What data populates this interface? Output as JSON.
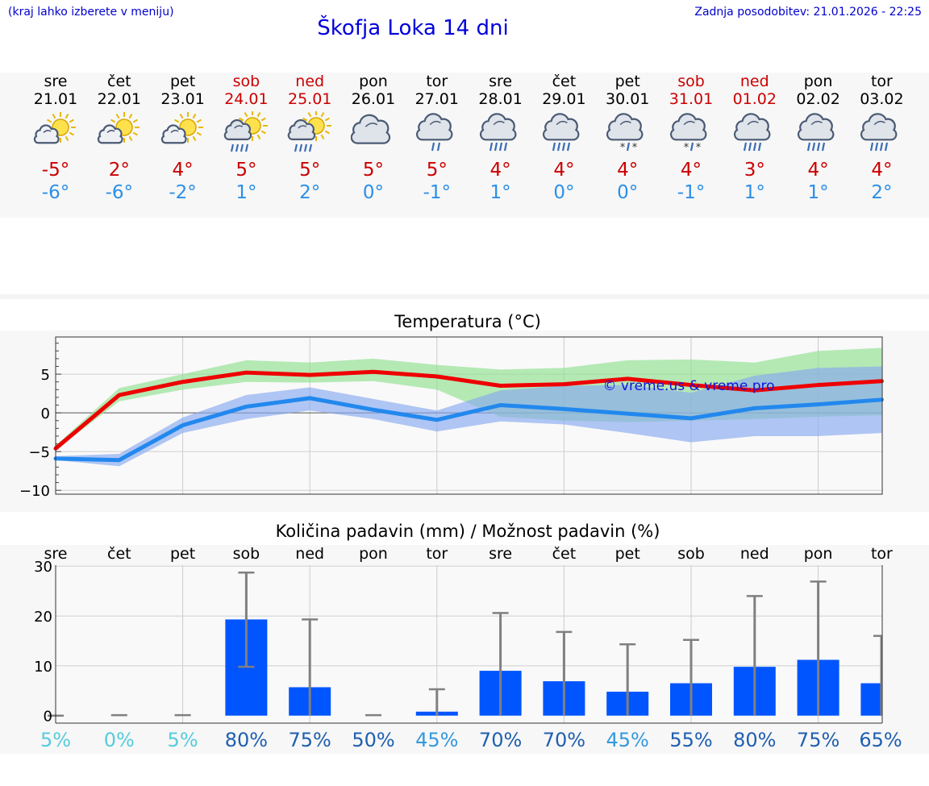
{
  "header": {
    "hint": "(kraj lahko izberete v meniju)",
    "title": "Škofja Loka 14 dni",
    "updated": "Zadnja posodobitev: 21.01.2026 - 22:25"
  },
  "colors": {
    "weekend": "#cc0000",
    "weekday": "#000000",
    "max": "#cc0000",
    "min": "#2b8fe8",
    "bar": "#0055ff",
    "err": "#808080"
  },
  "days": [
    {
      "dn": "sre",
      "dd": "21.01",
      "icon": "sun-partly-cloudy-icon",
      "tmax": "-5°",
      "tmin": "-6°",
      "weekend": false
    },
    {
      "dn": "čet",
      "dd": "22.01",
      "icon": "sun-partly-cloudy-icon",
      "tmax": "2°",
      "tmin": "-6°",
      "weekend": false
    },
    {
      "dn": "pet",
      "dd": "23.01",
      "icon": "sun-partly-cloudy-icon",
      "tmax": "4°",
      "tmin": "-2°",
      "weekend": false
    },
    {
      "dn": "sob",
      "dd": "24.01",
      "icon": "sun-cloud-rain-icon",
      "tmax": "5°",
      "tmin": "1°",
      "weekend": true
    },
    {
      "dn": "ned",
      "dd": "25.01",
      "icon": "sun-cloud-rain-icon",
      "tmax": "5°",
      "tmin": "2°",
      "weekend": true
    },
    {
      "dn": "pon",
      "dd": "26.01",
      "icon": "cloudy-icon",
      "tmax": "5°",
      "tmin": "0°",
      "weekend": false
    },
    {
      "dn": "tor",
      "dd": "27.01",
      "icon": "cloud-light-rain-icon",
      "tmax": "5°",
      "tmin": "-1°",
      "weekend": false
    },
    {
      "dn": "sre",
      "dd": "28.01",
      "icon": "cloud-rain-icon",
      "tmax": "4°",
      "tmin": "1°",
      "weekend": false
    },
    {
      "dn": "čet",
      "dd": "29.01",
      "icon": "cloud-rain-icon",
      "tmax": "4°",
      "tmin": "0°",
      "weekend": false
    },
    {
      "dn": "pet",
      "dd": "30.01",
      "icon": "cloud-sleet-icon",
      "tmax": "4°",
      "tmin": "0°",
      "weekend": false
    },
    {
      "dn": "sob",
      "dd": "31.01",
      "icon": "cloud-sleet-icon",
      "tmax": "4°",
      "tmin": "-1°",
      "weekend": true
    },
    {
      "dn": "ned",
      "dd": "01.02",
      "icon": "cloud-rain-icon",
      "tmax": "3°",
      "tmin": "1°",
      "weekend": true
    },
    {
      "dn": "pon",
      "dd": "02.02",
      "icon": "cloud-rain-icon",
      "tmax": "4°",
      "tmin": "1°",
      "weekend": false
    },
    {
      "dn": "tor",
      "dd": "03.02",
      "icon": "cloud-rain-icon",
      "tmax": "4°",
      "tmin": "2°",
      "weekend": false
    }
  ],
  "chart_data": [
    {
      "type": "line",
      "title": "Temperatura (°C)",
      "watermark": "© vreme.us & vreme.pro",
      "x": [
        0,
        1,
        2,
        3,
        4,
        5,
        6,
        7,
        8,
        9,
        10,
        11,
        12,
        13
      ],
      "ylim": [
        -10.5,
        9.8
      ],
      "yticks": [
        5,
        0,
        -5,
        -10
      ],
      "ytick_labels": [
        "5",
        "0",
        "−5",
        "−10"
      ],
      "series": [
        {
          "name": "max",
          "values": [
            -4.6,
            2.3,
            4.0,
            5.2,
            4.9,
            5.3,
            4.7,
            3.5,
            3.7,
            4.4,
            3.6,
            2.9,
            3.6,
            4.1
          ]
        },
        {
          "name": "min",
          "values": [
            -5.9,
            -6.1,
            -1.6,
            0.8,
            1.9,
            0.4,
            -0.9,
            1.0,
            0.5,
            -0.1,
            -0.7,
            0.6,
            1.1,
            1.7
          ]
        }
      ],
      "bands": [
        {
          "name": "max-range",
          "low": [
            -4.8,
            1.5,
            3.0,
            4.0,
            3.9,
            4.1,
            3.0,
            -0.5,
            -1.0,
            -1.2,
            -1.0,
            -0.8,
            -0.5,
            -0.3
          ],
          "high": [
            -4.2,
            3.2,
            5.0,
            6.8,
            6.5,
            7.0,
            6.2,
            5.6,
            5.8,
            6.8,
            6.9,
            6.5,
            8.0,
            8.4
          ]
        },
        {
          "name": "min-range",
          "low": [
            -6.1,
            -6.9,
            -2.6,
            -0.8,
            0.3,
            -0.8,
            -2.4,
            -1.1,
            -1.5,
            -2.6,
            -3.8,
            -3.0,
            -3.0,
            -2.6
          ],
          "high": [
            -5.6,
            -5.3,
            -0.6,
            2.3,
            3.3,
            1.8,
            0.3,
            2.9,
            3.5,
            3.6,
            2.6,
            4.8,
            5.8,
            6.0
          ]
        }
      ]
    },
    {
      "type": "bar",
      "title": "Količina padavin (mm) / Možnost padavin (%)",
      "categories": [
        "sre",
        "čet",
        "pet",
        "sob",
        "ned",
        "pon",
        "tor",
        "sre",
        "čet",
        "pet",
        "sob",
        "ned",
        "pon",
        "tor"
      ],
      "values": [
        0,
        0,
        0,
        19.3,
        5.7,
        0,
        0.8,
        9.0,
        6.9,
        4.8,
        6.5,
        9.8,
        11.2,
        6.5
      ],
      "err_low": [
        0,
        0,
        0,
        9.8,
        0,
        0,
        0,
        0,
        0,
        0,
        0,
        0,
        0,
        0
      ],
      "err_high": [
        0,
        0.1,
        0.1,
        28.7,
        19.3,
        0.1,
        5.3,
        20.6,
        16.8,
        14.3,
        15.2,
        24.0,
        26.9,
        16.0
      ],
      "ylim": [
        -1.5,
        30.2
      ],
      "yticks": [
        30,
        20,
        10,
        0
      ],
      "ytick_labels": [
        "30",
        "20",
        "10",
        "0"
      ],
      "probability": [
        "5%",
        "0%",
        "5%",
        "80%",
        "75%",
        "50%",
        "45%",
        "70%",
        "70%",
        "45%",
        "55%",
        "80%",
        "75%",
        "65%"
      ],
      "prob_colors": [
        "#55ccdd",
        "#55ccdd",
        "#55ccdd",
        "#1f5fb0",
        "#1f5fb0",
        "#1f5fb0",
        "#3399dd",
        "#1f5fb0",
        "#1f5fb0",
        "#3399dd",
        "#1f5fb0",
        "#1f5fb0",
        "#1f5fb0",
        "#1f5fb0"
      ]
    }
  ]
}
